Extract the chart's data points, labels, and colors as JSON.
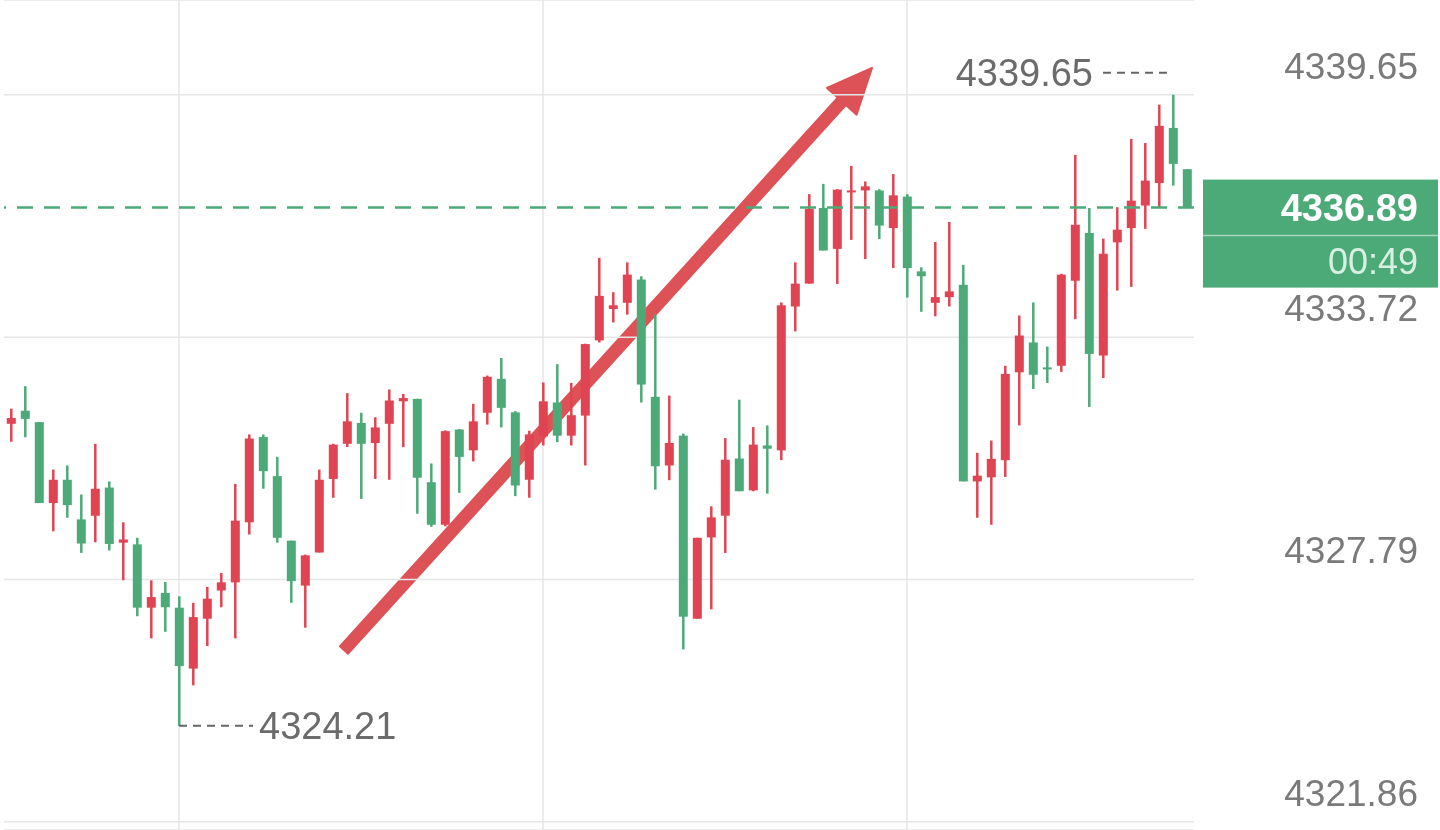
{
  "chart_data": {
    "type": "candlestick",
    "categories": [
      null,
      null,
      null,
      null,
      null,
      null,
      null,
      null,
      null,
      null,
      null,
      null,
      null,
      null,
      null,
      null,
      null,
      null,
      null,
      null,
      null,
      null,
      null,
      null,
      null,
      null,
      null,
      null,
      null,
      null,
      null,
      null,
      null,
      null,
      null,
      null,
      null,
      null,
      null,
      null,
      null,
      null,
      null,
      null,
      null,
      null,
      null,
      null,
      null,
      null,
      null,
      null,
      null,
      null,
      null,
      null,
      null,
      null,
      null,
      null,
      null,
      null,
      null,
      null,
      null,
      null,
      null,
      null,
      null,
      null,
      null,
      null,
      null,
      null,
      null,
      null,
      null,
      null,
      null,
      null,
      null,
      null,
      null,
      null,
      null
    ],
    "ohlc": [
      [
        4331.6,
        4331.97,
        4331.16,
        4331.74
      ],
      [
        4331.92,
        4332.52,
        4331.27,
        4331.72
      ],
      [
        4331.64,
        4331.64,
        4329.66,
        4329.66
      ],
      [
        4329.66,
        4330.48,
        4328.97,
        4330.23
      ],
      [
        4330.23,
        4330.58,
        4329.3,
        4329.61
      ],
      [
        4329.26,
        4329.87,
        4328.44,
        4328.67
      ],
      [
        4329.35,
        4331.11,
        4328.7,
        4330.01
      ],
      [
        4330.04,
        4330.19,
        4328.5,
        4328.66
      ],
      [
        4328.69,
        4329.19,
        4327.77,
        4328.77
      ],
      [
        4328.65,
        4328.81,
        4326.89,
        4327.1
      ],
      [
        4327.1,
        4327.77,
        4326.35,
        4327.36
      ],
      [
        4327.46,
        4327.73,
        4326.51,
        4327.11
      ],
      [
        4327.1,
        4327.38,
        4324.21,
        4325.67
      ],
      [
        4325.61,
        4327.22,
        4325.2,
        4326.87
      ],
      [
        4326.83,
        4327.61,
        4326.16,
        4327.32
      ],
      [
        4327.52,
        4327.95,
        4327.11,
        4327.72
      ],
      [
        4327.72,
        4330.13,
        4326.35,
        4329.23
      ],
      [
        4329.19,
        4331.34,
        4328.89,
        4331.24
      ],
      [
        4331.28,
        4331.34,
        4330.01,
        4330.44
      ],
      [
        4330.32,
        4330.79,
        4328.69,
        4328.81
      ],
      [
        4328.74,
        4328.74,
        4327.22,
        4327.75
      ],
      [
        4327.64,
        4328.4,
        4326.61,
        4328.38
      ],
      [
        4328.45,
        4330.48,
        4328.45,
        4330.23
      ],
      [
        4330.25,
        4331.11,
        4329.79,
        4331.09
      ],
      [
        4331.11,
        4332.35,
        4331.03,
        4331.66
      ],
      [
        4331.62,
        4331.87,
        4329.76,
        4331.11
      ],
      [
        4331.13,
        4331.76,
        4330.25,
        4331.51
      ],
      [
        4331.6,
        4332.44,
        4330.23,
        4332.17
      ],
      [
        4332.15,
        4332.33,
        4331.03,
        4332.23
      ],
      [
        4332.21,
        4332.21,
        4329.4,
        4330.28
      ],
      [
        4330.17,
        4330.63,
        4329.08,
        4329.13
      ],
      [
        4329.13,
        4331.44,
        4329.09,
        4331.42
      ],
      [
        4331.46,
        4331.47,
        4329.91,
        4330.79
      ],
      [
        4330.95,
        4332.09,
        4330.68,
        4331.66
      ],
      [
        4331.87,
        4332.78,
        4331.58,
        4332.75
      ],
      [
        4332.7,
        4333.21,
        4331.51,
        4331.99
      ],
      [
        4331.88,
        4331.91,
        4329.83,
        4330.09
      ],
      [
        4330.23,
        4331.43,
        4329.79,
        4331.34
      ],
      [
        4331.29,
        4332.61,
        4331.07,
        4332.15
      ],
      [
        4332.12,
        4333.06,
        4331.15,
        4331.31
      ],
      [
        4331.31,
        4332.6,
        4331.07,
        4331.81
      ],
      [
        4331.8,
        4333.56,
        4330.58,
        4333.55
      ],
      [
        4333.64,
        4335.66,
        4333.59,
        4334.73
      ],
      [
        4334.41,
        4334.82,
        4334.08,
        4334.5
      ],
      [
        4334.56,
        4335.55,
        4334.27,
        4335.25
      ],
      [
        4335.13,
        4335.21,
        4332.12,
        4332.56
      ],
      [
        4332.26,
        4334.27,
        4329.99,
        4330.56
      ],
      [
        4330.58,
        4332.29,
        4330.22,
        4331.13
      ],
      [
        4331.31,
        4331.36,
        4326.08,
        4326.88
      ],
      [
        4326.83,
        4328.81,
        4326.83,
        4328.81
      ],
      [
        4328.82,
        4329.58,
        4327.06,
        4329.31
      ],
      [
        4329.35,
        4331.25,
        4328.44,
        4330.72
      ],
      [
        4330.75,
        4332.19,
        4329.95,
        4329.95
      ],
      [
        4329.97,
        4331.52,
        4329.95,
        4331.09
      ],
      [
        4331.07,
        4331.56,
        4329.89,
        4330.99
      ],
      [
        4330.95,
        4334.57,
        4330.71,
        4334.5
      ],
      [
        4334.47,
        4335.55,
        4333.86,
        4335.03
      ],
      [
        4335.03,
        4337.22,
        4335.03,
        4336.86
      ],
      [
        4336.88,
        4337.47,
        4335.84,
        4335.84
      ],
      [
        4335.88,
        4337.34,
        4335.02,
        4337.33
      ],
      [
        4337.27,
        4337.91,
        4336.1,
        4337.31
      ],
      [
        4337.31,
        4337.53,
        4335.63,
        4337.41
      ],
      [
        4337.31,
        4337.34,
        4336.12,
        4336.45
      ],
      [
        4336.39,
        4337.71,
        4335.41,
        4337.19
      ],
      [
        4337.16,
        4337.22,
        4334.69,
        4335.41
      ],
      [
        4335.33,
        4335.43,
        4334.34,
        4335.21
      ],
      [
        4334.56,
        4336.05,
        4334.23,
        4334.7
      ],
      [
        4334.7,
        4336.54,
        4334.47,
        4334.84
      ],
      [
        4335.0,
        4335.49,
        4330.19,
        4330.19
      ],
      [
        4330.19,
        4330.89,
        4329.3,
        4330.33
      ],
      [
        4330.29,
        4331.19,
        4329.13,
        4330.74
      ],
      [
        4330.71,
        4333.02,
        4330.3,
        4332.82
      ],
      [
        4332.86,
        4334.25,
        4331.56,
        4333.76
      ],
      [
        4333.59,
        4334.57,
        4332.45,
        4332.8
      ],
      [
        4332.98,
        4333.49,
        4332.6,
        4332.96
      ],
      [
        4333.02,
        4335.27,
        4332.87,
        4335.25
      ],
      [
        4335.1,
        4338.18,
        4334.16,
        4336.47
      ],
      [
        4336.27,
        4336.88,
        4332.01,
        4333.31
      ],
      [
        4333.27,
        4336.13,
        4332.72,
        4335.76
      ],
      [
        4336.04,
        4336.9,
        4334.86,
        4336.35
      ],
      [
        4336.39,
        4338.57,
        4334.95,
        4337.06
      ],
      [
        4336.94,
        4338.47,
        4336.37,
        4337.55
      ],
      [
        4337.49,
        4339.41,
        4336.88,
        4338.89
      ],
      [
        4338.84,
        4339.65,
        4337.43,
        4337.96
      ],
      [
        4337.83,
        4337.83,
        4336.89,
        4336.89
      ]
    ],
    "colors": [
      "#e04452",
      "#4caa78",
      "#4caa78",
      "#e04452",
      "#4caa78",
      "#4caa78",
      "#e04452",
      "#4caa78",
      "#e04452",
      "#4caa78",
      "#e04452",
      "#4caa78",
      "#4caa78",
      "#e04452",
      "#e04452",
      "#e04452",
      "#e04452",
      "#e04452",
      "#4caa78",
      "#4caa78",
      "#4caa78",
      "#e04452",
      "#e04452",
      "#e04452",
      "#e04452",
      "#4caa78",
      "#e04452",
      "#e04452",
      "#e04452",
      "#4caa78",
      "#4caa78",
      "#e04452",
      "#4caa78",
      "#e04452",
      "#e04452",
      "#4caa78",
      "#4caa78",
      "#e04452",
      "#e04452",
      "#4caa78",
      "#e04452",
      "#e04452",
      "#e04452",
      "#e04452",
      "#e04452",
      "#4caa78",
      "#4caa78",
      "#e04452",
      "#4caa78",
      "#e04452",
      "#e04452",
      "#e04452",
      "#4caa78",
      "#e04452",
      "#4caa78",
      "#e04452",
      "#e04452",
      "#e04452",
      "#4caa78",
      "#e04452",
      "#e04452",
      "#e04452",
      "#4caa78",
      "#e04452",
      "#4caa78",
      "#4caa78",
      "#e04452",
      "#e04452",
      "#4caa78",
      "#e04452",
      "#e04452",
      "#e04452",
      "#e04452",
      "#4caa78",
      "#4caa78",
      "#e04452",
      "#e04452",
      "#4caa78",
      "#e04452",
      "#e04452",
      "#e04452",
      "#e04452",
      "#e04452",
      "#4caa78",
      "#4caa78"
    ],
    "ylim": [
      4321.66,
      4341.97
    ],
    "yticks": [
      4321.86,
      4327.79,
      4333.72,
      4339.65
    ],
    "grid": true,
    "ref_lines": [
      {
        "axis": "y",
        "value": 4336.89,
        "label": "4336.89",
        "color": "#4caa78",
        "line_style": "dashed"
      }
    ],
    "annotations": [
      "4339.65",
      "4324.21",
      "00:49"
    ]
  }
}
